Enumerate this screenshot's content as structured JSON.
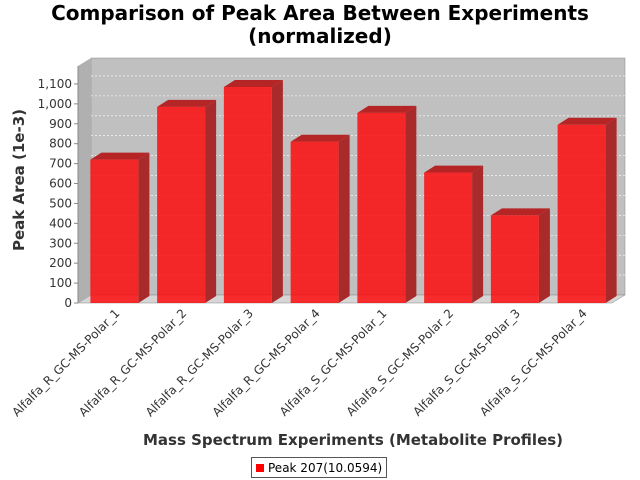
{
  "chart_data": {
    "type": "bar",
    "title": [
      "Comparison of Peak Area Between Experiments",
      "(normalized)"
    ],
    "xlabel": "Mass Spectrum Experiments (Metabolite Profiles)",
    "ylabel": "Peak Area (1e-3)",
    "categories": [
      "Alfalfa_R_GC-MS-Polar_1",
      "Alfalfa_R_GC-MS-Polar_2",
      "Alfalfa_R_GC-MS-Polar_3",
      "Alfalfa_R_GC-MS-Polar_4",
      "Alfalfa_S_GC-MS-Polar_1",
      "Alfalfa_S_GC-MS-Polar_2",
      "Alfalfa_S_GC-MS-Polar_3",
      "Alfalfa_S_GC-MS-Polar_4"
    ],
    "series": [
      {
        "name": "Peak 207(10.0594)",
        "color": "#ff0000",
        "values": [
          720,
          985,
          1085,
          810,
          955,
          655,
          440,
          895
        ]
      }
    ],
    "ylim": [
      0,
      1150
    ],
    "yticks": [
      0,
      100,
      200,
      300,
      400,
      500,
      600,
      700,
      800,
      900,
      1000,
      1100
    ],
    "ytick_labels": [
      "0",
      "100",
      "200",
      "300",
      "400",
      "500",
      "600",
      "700",
      "800",
      "900",
      "1,000",
      "1,100"
    ],
    "grid": true,
    "style": "3d",
    "legend_position": "bottom"
  }
}
